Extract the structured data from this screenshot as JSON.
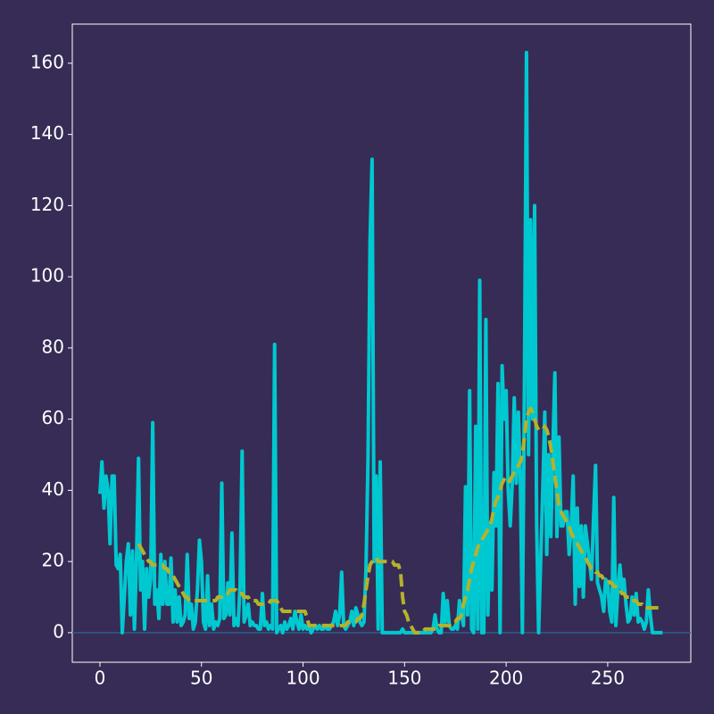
{
  "chart_data": {
    "type": "line",
    "x": [
      0,
      1,
      2,
      3,
      4,
      5,
      6,
      7,
      8,
      9,
      10,
      11,
      12,
      13,
      14,
      15,
      16,
      17,
      18,
      19,
      20,
      21,
      22,
      23,
      24,
      25,
      26,
      27,
      28,
      29,
      30,
      31,
      32,
      33,
      34,
      35,
      36,
      37,
      38,
      39,
      40,
      41,
      42,
      43,
      44,
      45,
      46,
      47,
      48,
      49,
      50,
      51,
      52,
      53,
      54,
      55,
      56,
      57,
      58,
      59,
      60,
      61,
      62,
      63,
      64,
      65,
      66,
      67,
      68,
      69,
      70,
      71,
      72,
      73,
      74,
      75,
      76,
      77,
      78,
      79,
      80,
      81,
      82,
      83,
      84,
      85,
      86,
      87,
      88,
      89,
      90,
      91,
      92,
      93,
      94,
      95,
      96,
      97,
      98,
      99,
      100,
      101,
      102,
      103,
      104,
      105,
      106,
      107,
      108,
      109,
      110,
      111,
      112,
      113,
      114,
      115,
      116,
      117,
      118,
      119,
      120,
      121,
      122,
      123,
      124,
      125,
      126,
      127,
      128,
      129,
      130,
      131,
      132,
      133,
      134,
      135,
      136,
      137,
      138,
      139,
      140,
      141,
      142,
      143,
      144,
      145,
      146,
      147,
      148,
      149,
      150,
      151,
      152,
      153,
      154,
      155,
      156,
      157,
      158,
      159,
      160,
      161,
      162,
      163,
      164,
      165,
      166,
      167,
      168,
      169,
      170,
      171,
      172,
      173,
      174,
      175,
      176,
      177,
      178,
      179,
      180,
      181,
      182,
      183,
      184,
      185,
      186,
      187,
      188,
      189,
      190,
      191,
      192,
      193,
      194,
      195,
      196,
      197,
      198,
      199,
      200,
      201,
      202,
      203,
      204,
      205,
      206,
      207,
      208,
      209,
      210,
      211,
      212,
      213,
      214,
      215,
      216,
      217,
      218,
      219,
      220,
      221,
      222,
      223,
      224,
      225,
      226,
      227,
      228,
      229,
      230,
      231,
      232,
      233,
      234,
      235,
      236,
      237,
      238,
      239,
      240,
      241,
      242,
      243,
      244,
      245,
      246,
      247,
      248,
      249,
      250,
      251,
      252,
      253,
      254,
      255,
      256,
      257,
      258,
      259,
      260,
      261,
      262,
      263,
      264,
      265,
      266,
      267,
      268,
      269,
      270,
      271,
      272,
      273,
      274,
      275,
      276,
      277
    ],
    "series": [
      {
        "color": "#00c8d0",
        "style": "solid",
        "values": [
          39,
          48,
          35,
          44,
          40,
          25,
          44,
          44,
          19,
          18,
          22,
          0,
          10,
          20,
          25,
          5,
          23,
          1,
          20,
          49,
          12,
          20,
          1,
          18,
          10,
          15,
          59,
          8,
          12,
          4,
          22,
          8,
          20,
          8,
          8,
          21,
          3,
          12,
          3,
          10,
          2,
          3,
          5,
          22,
          4,
          8,
          1,
          3,
          12,
          26,
          20,
          3,
          1,
          16,
          2,
          8,
          1,
          3,
          2,
          4,
          42,
          4,
          5,
          14,
          5,
          28,
          2,
          4,
          2,
          13,
          51,
          3,
          5,
          8,
          2,
          3,
          2,
          2,
          1,
          1,
          11,
          2,
          3,
          1,
          2,
          1,
          81,
          0,
          1,
          2,
          0,
          3,
          1,
          2,
          4,
          1,
          6,
          3,
          1,
          5,
          1,
          2,
          1,
          2,
          0,
          1,
          2,
          1,
          2,
          1,
          1,
          2,
          1,
          1,
          2,
          3,
          6,
          2,
          5,
          17,
          2,
          1,
          2,
          3,
          6,
          2,
          7,
          5,
          3,
          2,
          3,
          18,
          50,
          110,
          133,
          20,
          44,
          1,
          48,
          0,
          0,
          0,
          0,
          0,
          0,
          0,
          0,
          0,
          0,
          1,
          0,
          0,
          0,
          0,
          0,
          0,
          0,
          0,
          0,
          0,
          0,
          0,
          0,
          0,
          1,
          5,
          1,
          0,
          0,
          11,
          3,
          9,
          2,
          1,
          1,
          2,
          1,
          9,
          5,
          2,
          41,
          5,
          68,
          1,
          0,
          58,
          1,
          99,
          0,
          0,
          88,
          5,
          30,
          12,
          45,
          30,
          70,
          0,
          75,
          60,
          68,
          40,
          30,
          42,
          66,
          42,
          62,
          42,
          0,
          70,
          163,
          50,
          116,
          60,
          120,
          30,
          0,
          20,
          40,
          62,
          22,
          50,
          27,
          52,
          73,
          27,
          55,
          30,
          30,
          34,
          34,
          22,
          30,
          44,
          8,
          35,
          13,
          30,
          10,
          30,
          25,
          20,
          15,
          32,
          47,
          14,
          12,
          10,
          6,
          15,
          14,
          6,
          3,
          38,
          2,
          12,
          19,
          12,
          15,
          8,
          3,
          4,
          10,
          5,
          11,
          3,
          4,
          3,
          1,
          3,
          12,
          5,
          0,
          0,
          0,
          0,
          0,
          0
        ]
      },
      {
        "color": "#b5b22a",
        "style": "dashed",
        "values": [
          null,
          null,
          null,
          null,
          null,
          null,
          null,
          null,
          null,
          null,
          null,
          null,
          null,
          null,
          null,
          null,
          null,
          null,
          null,
          25,
          24,
          23,
          22,
          21,
          20,
          20,
          19,
          19,
          19,
          19,
          19,
          19,
          18,
          18,
          17,
          17,
          16,
          15,
          14,
          13,
          12,
          11,
          10,
          10,
          9,
          9,
          9,
          9,
          9,
          9,
          9,
          9,
          9,
          9,
          9,
          9,
          9,
          9,
          10,
          10,
          10,
          11,
          11,
          11,
          12,
          12,
          12,
          12,
          11,
          11,
          11,
          10,
          10,
          10,
          9,
          9,
          9,
          9,
          8,
          8,
          8,
          8,
          8,
          8,
          9,
          9,
          9,
          9,
          8,
          7,
          6,
          6,
          6,
          6,
          6,
          6,
          6,
          6,
          6,
          6,
          6,
          6,
          4,
          2,
          2,
          2,
          2,
          2,
          2,
          2,
          2,
          2,
          2,
          2,
          2,
          2,
          2,
          2,
          2,
          2,
          2,
          2,
          3,
          3,
          3,
          3,
          3,
          4,
          4,
          5,
          8,
          12,
          16,
          19,
          20,
          21,
          21,
          20,
          20,
          20,
          20,
          20,
          20,
          20,
          20,
          19,
          19,
          19,
          17,
          10,
          6,
          5,
          3,
          2,
          1,
          0,
          0,
          0,
          0,
          0,
          1,
          1,
          1,
          1,
          1,
          1,
          1,
          2,
          2,
          2,
          2,
          2,
          2,
          2,
          3,
          3,
          4,
          4,
          5,
          8,
          10,
          12,
          15,
          18,
          20,
          22,
          24,
          25,
          26,
          27,
          28,
          29,
          30,
          32,
          35,
          37,
          38,
          40,
          42,
          43,
          42,
          42,
          43,
          44,
          45,
          46,
          47,
          48,
          50,
          55,
          60,
          62,
          63,
          62,
          60,
          58,
          57,
          57,
          57,
          58,
          57,
          55,
          52,
          48,
          44,
          40,
          36,
          34,
          33,
          32,
          31,
          30,
          28,
          27,
          26,
          25,
          24,
          23,
          22,
          21,
          20,
          19,
          18,
          18,
          17,
          17,
          16,
          16,
          15,
          15,
          15,
          14,
          14,
          13,
          13,
          12,
          12,
          11,
          11,
          10,
          10,
          10,
          9,
          9,
          9,
          8,
          8,
          8,
          7,
          7,
          7,
          7,
          7,
          7,
          7,
          7,
          7,
          7
        ]
      }
    ],
    "xlim": [
      -13.6,
      290.9
    ],
    "ylim": [
      -8.3,
      171
    ],
    "xticks": [
      0,
      50,
      100,
      150,
      200,
      250
    ],
    "yticks": [
      0,
      20,
      40,
      60,
      80,
      100,
      120,
      140,
      160
    ],
    "hline": 0,
    "hline_color": "#2b5d8c",
    "background": "#372c55"
  }
}
